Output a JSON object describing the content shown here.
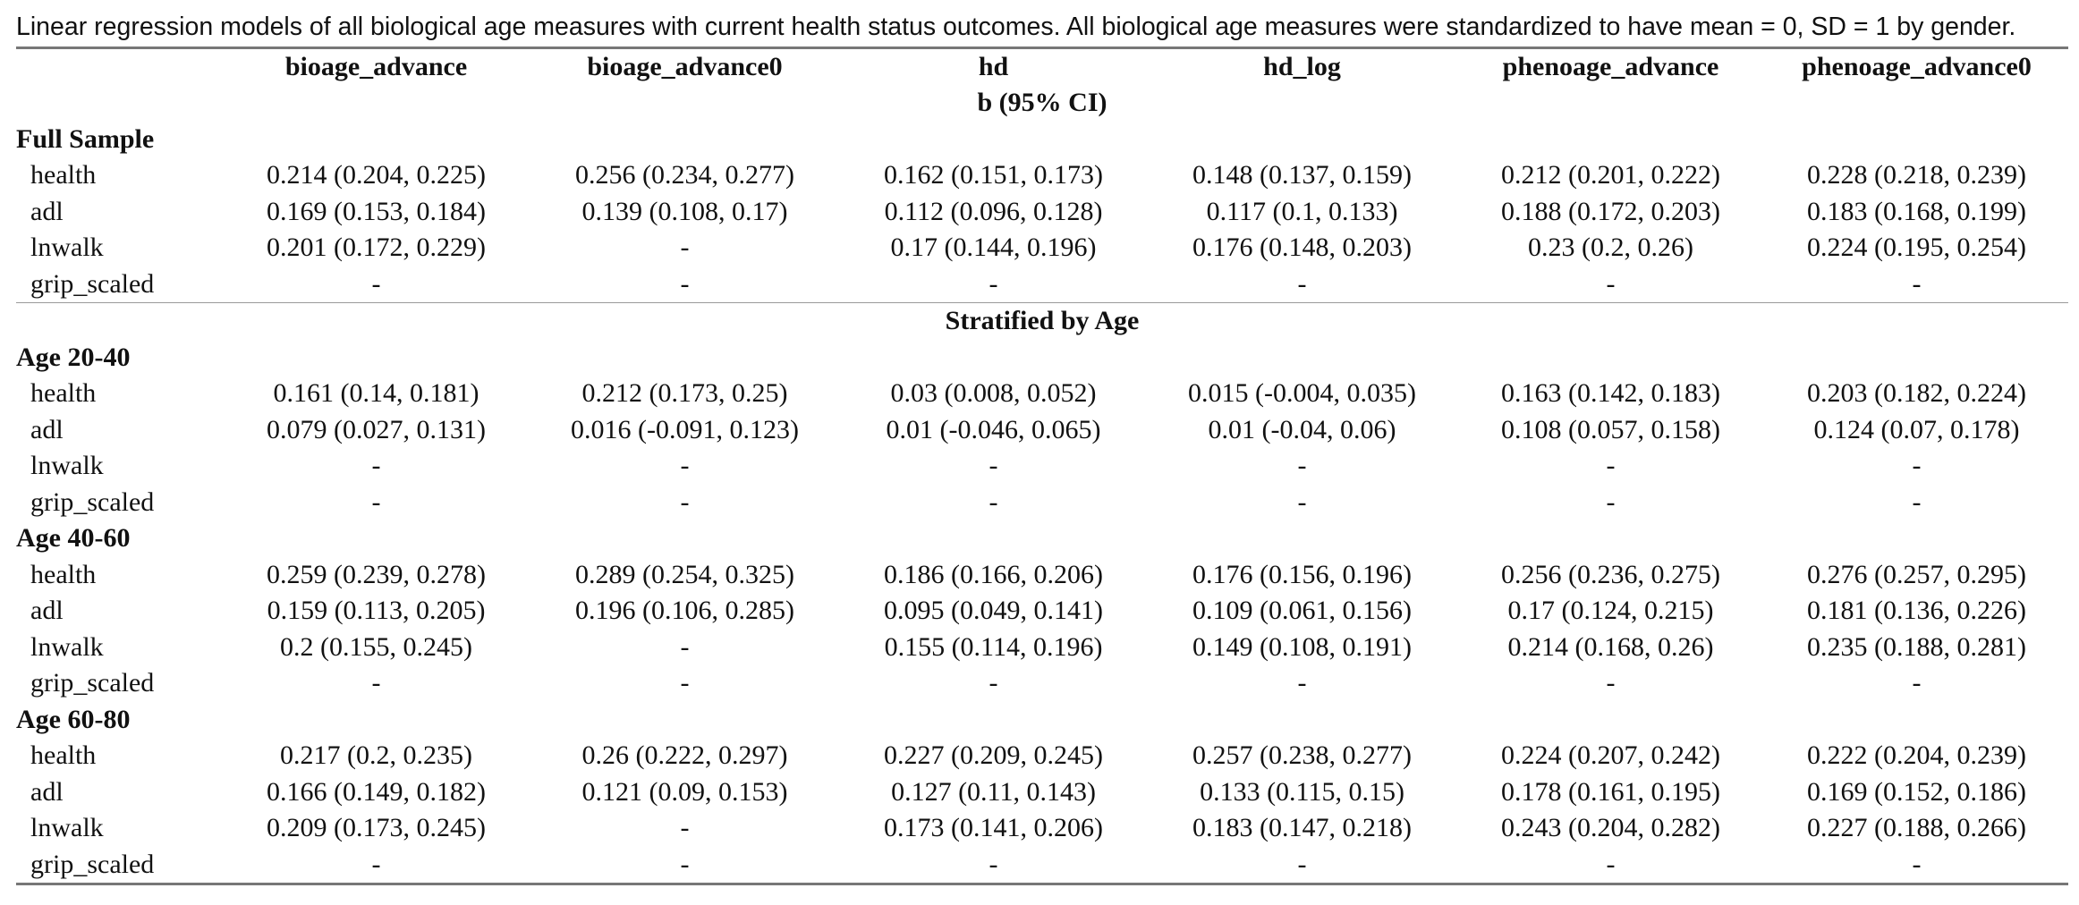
{
  "caption": "Linear regression models of all biological age measures with current health status outcomes. All biological age measures were standardized to have mean = 0, SD = 1 by gender.",
  "columns": [
    "",
    "bioage_advance",
    "bioage_advance0",
    "hd",
    "hd_log",
    "phenoage_advance",
    "phenoage_advance0"
  ],
  "panel_b": "b (95% CI)",
  "full_sample": {
    "label": "Full Sample",
    "rows": [
      {
        "label": "health",
        "vals": [
          "0.214 (0.204, 0.225)",
          "0.256 (0.234, 0.277)",
          "0.162 (0.151, 0.173)",
          "0.148 (0.137, 0.159)",
          "0.212 (0.201, 0.222)",
          "0.228 (0.218, 0.239)"
        ]
      },
      {
        "label": "adl",
        "vals": [
          "0.169 (0.153, 0.184)",
          "0.139 (0.108, 0.17)",
          "0.112 (0.096, 0.128)",
          "0.117 (0.1, 0.133)",
          "0.188 (0.172, 0.203)",
          "0.183 (0.168, 0.199)"
        ]
      },
      {
        "label": "lnwalk",
        "vals": [
          "0.201 (0.172, 0.229)",
          "-",
          "0.17 (0.144, 0.196)",
          "0.176 (0.148, 0.203)",
          "0.23 (0.2, 0.26)",
          "0.224 (0.195, 0.254)"
        ]
      },
      {
        "label": "grip_scaled",
        "vals": [
          "-",
          "-",
          "-",
          "-",
          "-",
          "-"
        ]
      }
    ]
  },
  "panel_strat": "Stratified by Age",
  "age_groups": [
    {
      "label": "Age 20-40",
      "rows": [
        {
          "label": "health",
          "vals": [
            "0.161 (0.14, 0.181)",
            "0.212 (0.173, 0.25)",
            "0.03 (0.008, 0.052)",
            "0.015 (-0.004, 0.035)",
            "0.163 (0.142, 0.183)",
            "0.203 (0.182, 0.224)"
          ]
        },
        {
          "label": "adl",
          "vals": [
            "0.079 (0.027, 0.131)",
            "0.016 (-0.091, 0.123)",
            "0.01 (-0.046, 0.065)",
            "0.01 (-0.04, 0.06)",
            "0.108 (0.057, 0.158)",
            "0.124 (0.07, 0.178)"
          ]
        },
        {
          "label": "lnwalk",
          "vals": [
            "-",
            "-",
            "-",
            "-",
            "-",
            "-"
          ]
        },
        {
          "label": "grip_scaled",
          "vals": [
            "-",
            "-",
            "-",
            "-",
            "-",
            "-"
          ]
        }
      ]
    },
    {
      "label": "Age 40-60",
      "rows": [
        {
          "label": "health",
          "vals": [
            "0.259 (0.239, 0.278)",
            "0.289 (0.254, 0.325)",
            "0.186 (0.166, 0.206)",
            "0.176 (0.156, 0.196)",
            "0.256 (0.236, 0.275)",
            "0.276 (0.257, 0.295)"
          ]
        },
        {
          "label": "adl",
          "vals": [
            "0.159 (0.113, 0.205)",
            "0.196 (0.106, 0.285)",
            "0.095 (0.049, 0.141)",
            "0.109 (0.061, 0.156)",
            "0.17 (0.124, 0.215)",
            "0.181 (0.136, 0.226)"
          ]
        },
        {
          "label": "lnwalk",
          "vals": [
            "0.2 (0.155, 0.245)",
            "-",
            "0.155 (0.114, 0.196)",
            "0.149 (0.108, 0.191)",
            "0.214 (0.168, 0.26)",
            "0.235 (0.188, 0.281)"
          ]
        },
        {
          "label": "grip_scaled",
          "vals": [
            "-",
            "-",
            "-",
            "-",
            "-",
            "-"
          ]
        }
      ]
    },
    {
      "label": "Age 60-80",
      "rows": [
        {
          "label": "health",
          "vals": [
            "0.217 (0.2, 0.235)",
            "0.26 (0.222, 0.297)",
            "0.227 (0.209, 0.245)",
            "0.257 (0.238, 0.277)",
            "0.224 (0.207, 0.242)",
            "0.222 (0.204, 0.239)"
          ]
        },
        {
          "label": "adl",
          "vals": [
            "0.166 (0.149, 0.182)",
            "0.121 (0.09, 0.153)",
            "0.127 (0.11, 0.143)",
            "0.133 (0.115, 0.15)",
            "0.178 (0.161, 0.195)",
            "0.169 (0.152, 0.186)"
          ]
        },
        {
          "label": "lnwalk",
          "vals": [
            "0.209 (0.173, 0.245)",
            "-",
            "0.173 (0.141, 0.206)",
            "0.183 (0.147, 0.218)",
            "0.243 (0.204, 0.282)",
            "0.227 (0.188, 0.266)"
          ]
        },
        {
          "label": "grip_scaled",
          "vals": [
            "-",
            "-",
            "-",
            "-",
            "-",
            "-"
          ]
        }
      ]
    }
  ]
}
